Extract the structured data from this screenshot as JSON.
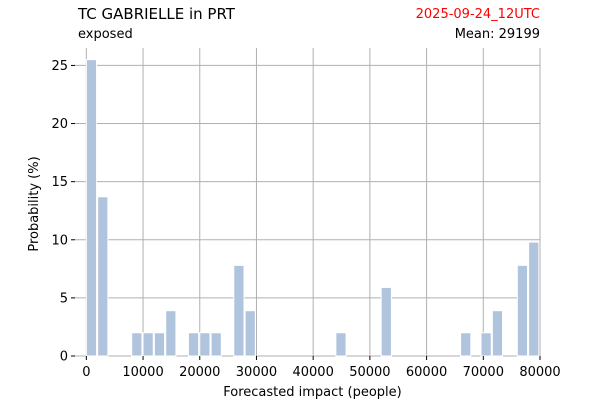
{
  "header": {
    "title": "TC GABRIELLE in PRT",
    "date": "2025-09-24_12UTC",
    "date_color": "#ff0000",
    "subtitle": "exposed",
    "mean_label": "Mean: 29199"
  },
  "chart_data": {
    "type": "bar",
    "xlabel": "Forecasted impact (people)",
    "ylabel": "Probability (%)",
    "xlim": [
      -2000,
      80000
    ],
    "ylim": [
      0,
      26.5
    ],
    "xticks": [
      0,
      10000,
      20000,
      30000,
      40000,
      50000,
      60000,
      70000,
      80000
    ],
    "yticks": [
      0,
      5,
      10,
      15,
      20,
      25
    ],
    "grid": true,
    "bar_color": "#b0c4de",
    "bin_width": 1800,
    "bars": [
      {
        "x": 900,
        "value": 25.5
      },
      {
        "x": 2900,
        "value": 13.7
      },
      {
        "x": 8900,
        "value": 2.0
      },
      {
        "x": 10900,
        "value": 2.0
      },
      {
        "x": 12900,
        "value": 2.0
      },
      {
        "x": 14900,
        "value": 3.9
      },
      {
        "x": 18900,
        "value": 2.0
      },
      {
        "x": 20900,
        "value": 2.0
      },
      {
        "x": 22900,
        "value": 2.0
      },
      {
        "x": 26900,
        "value": 7.8
      },
      {
        "x": 28900,
        "value": 3.9
      },
      {
        "x": 44900,
        "value": 2.0
      },
      {
        "x": 52900,
        "value": 5.9
      },
      {
        "x": 66900,
        "value": 2.0
      },
      {
        "x": 70500,
        "value": 2.0
      },
      {
        "x": 72500,
        "value": 3.9
      },
      {
        "x": 76900,
        "value": 7.8
      },
      {
        "x": 78900,
        "value": 9.8
      }
    ]
  }
}
